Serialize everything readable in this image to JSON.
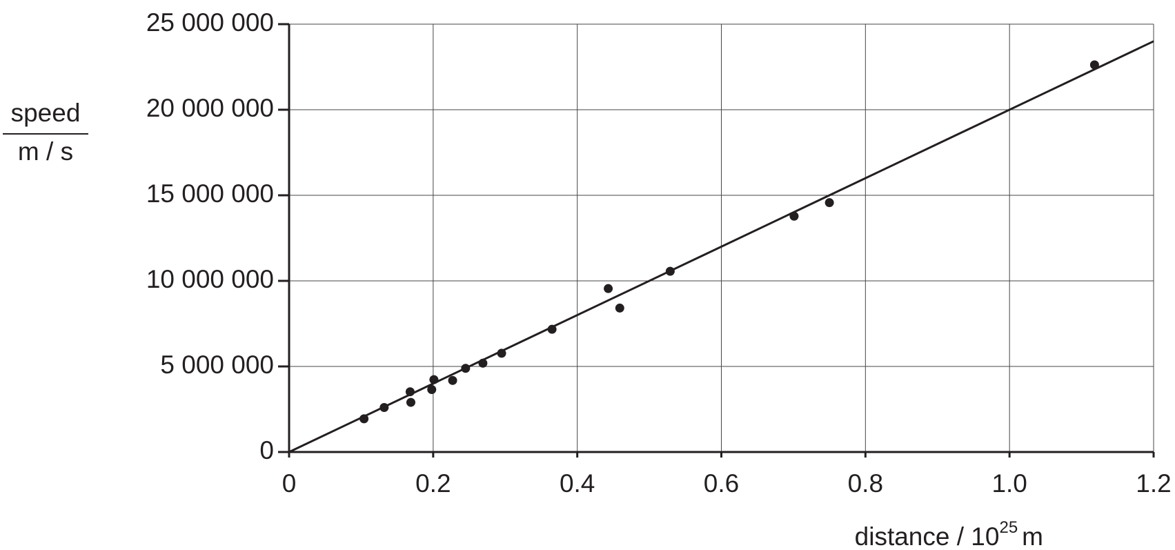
{
  "chart_data": {
    "type": "scatter",
    "y_label": {
      "numerator": "speed",
      "denominator": "m / s"
    },
    "x_label": {
      "text": "distance / 10",
      "exponent": "25",
      "unit": "m"
    },
    "xlim": [
      0,
      1.2
    ],
    "ylim": [
      0,
      25000000
    ],
    "xticks": [
      0,
      0.2,
      0.4,
      0.6,
      0.8,
      {
        "value": 1,
        "label": "1.0"
      },
      1.2
    ],
    "yticks": [
      0,
      {
        "value": 5000000,
        "label": "5 000 000"
      },
      {
        "value": 10000000,
        "label": "10 000 000"
      },
      {
        "value": 15000000,
        "label": "15 000 000"
      },
      {
        "value": 20000000,
        "label": "20 000 000"
      },
      {
        "value": 25000000,
        "label": "25 000 000"
      }
    ],
    "grid": true,
    "points": {
      "color": "#231f20",
      "x": [
        0.104,
        0.132,
        0.168,
        0.169,
        0.198,
        0.201,
        0.227,
        0.245,
        0.269,
        0.295,
        0.365,
        0.443,
        0.459,
        0.529,
        0.701,
        0.75,
        1.118
      ],
      "values": [
        1940000,
        2600000,
        3520000,
        2900000,
        3650000,
        4230000,
        4180000,
        4890000,
        5190000,
        5770000,
        7170000,
        9550000,
        8410000,
        10560000,
        13780000,
        14570000,
        22620000
      ]
    },
    "fit_line": {
      "color": "#231f20",
      "x": [
        0,
        1.2
      ],
      "values": [
        0,
        24000000
      ]
    }
  }
}
